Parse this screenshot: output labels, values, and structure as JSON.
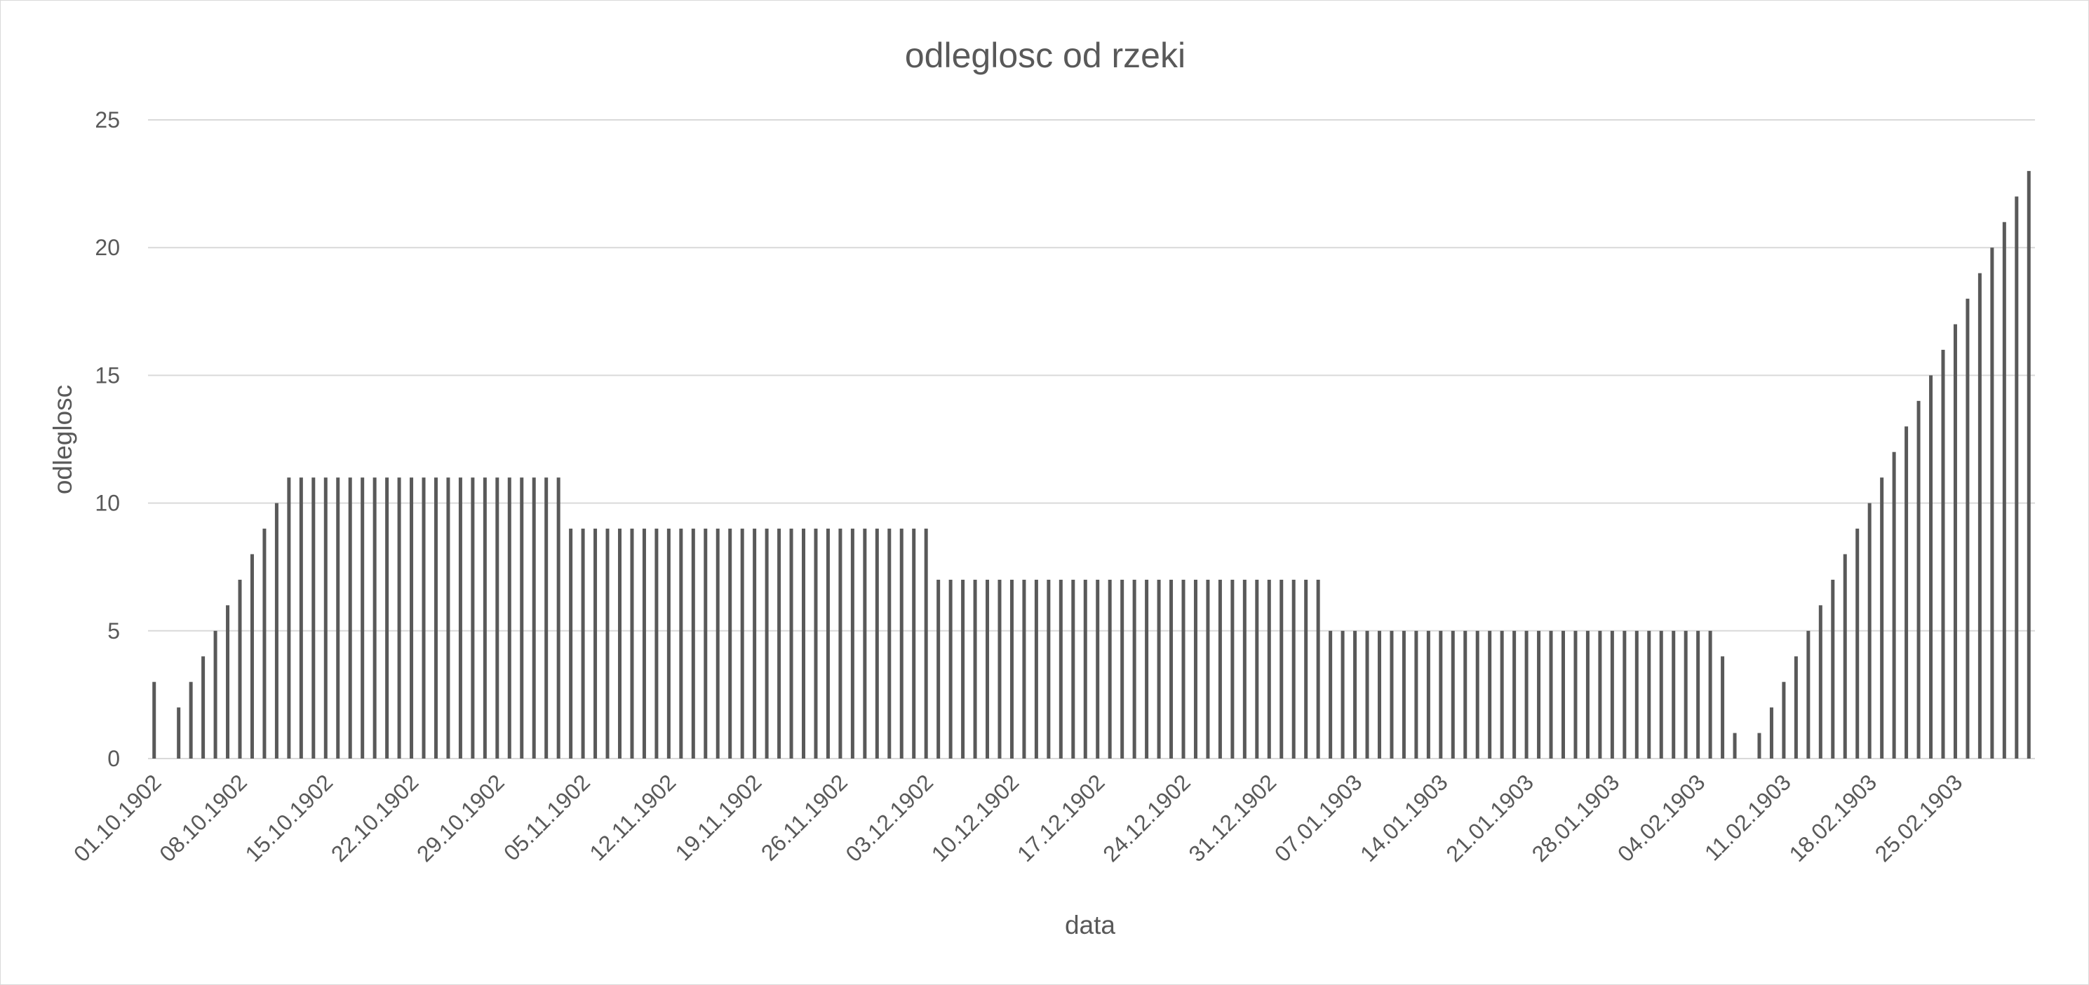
{
  "chart_data": {
    "type": "bar",
    "title": "odleglosc od rzeki",
    "xlabel": "data",
    "ylabel": "odleglosc",
    "ylim": [
      0,
      25
    ],
    "y_ticks": [
      0,
      5,
      10,
      15,
      20,
      25
    ],
    "grid": true,
    "legend": "none",
    "bar_color": "#595959",
    "x_start": "01.10.1902",
    "x_end": "01.03.1903",
    "x_ticks": [
      "01.10.1902",
      "08.10.1902",
      "15.10.1902",
      "22.10.1902",
      "29.10.1902",
      "05.11.1902",
      "12.11.1902",
      "19.11.1902",
      "26.11.1902",
      "03.12.1902",
      "10.12.1902",
      "17.12.1902",
      "24.12.1902",
      "31.12.1902",
      "07.01.1903",
      "14.01.1903",
      "21.01.1903",
      "28.01.1903",
      "04.02.1903",
      "11.02.1903",
      "18.02.1903",
      "25.02.1903"
    ],
    "series": [
      {
        "values": [
          3,
          0,
          2,
          3,
          4,
          5,
          6,
          7,
          8,
          9,
          10,
          11,
          11,
          11,
          11,
          11,
          11,
          11,
          11,
          11,
          11,
          11,
          11,
          11,
          11,
          11,
          11,
          11,
          11,
          11,
          11,
          11,
          11,
          11,
          9,
          9,
          9,
          9,
          9,
          9,
          9,
          9,
          9,
          9,
          9,
          9,
          9,
          9,
          9,
          9,
          9,
          9,
          9,
          9,
          9,
          9,
          9,
          9,
          9,
          9,
          9,
          9,
          9,
          9,
          7,
          7,
          7,
          7,
          7,
          7,
          7,
          7,
          7,
          7,
          7,
          7,
          7,
          7,
          7,
          7,
          7,
          7,
          7,
          7,
          7,
          7,
          7,
          7,
          7,
          7,
          7,
          7,
          7,
          7,
          7,
          7,
          5,
          5,
          5,
          5,
          5,
          5,
          5,
          5,
          5,
          5,
          5,
          5,
          5,
          5,
          5,
          5,
          5,
          5,
          5,
          5,
          5,
          5,
          5,
          5,
          5,
          5,
          5,
          5,
          5,
          5,
          5,
          5,
          4,
          1,
          0,
          1,
          2,
          3,
          4,
          5,
          6,
          7,
          8,
          9,
          10,
          11,
          12,
          13,
          14,
          15,
          16,
          17,
          18,
          19,
          20,
          21,
          22,
          23
        ]
      }
    ]
  }
}
